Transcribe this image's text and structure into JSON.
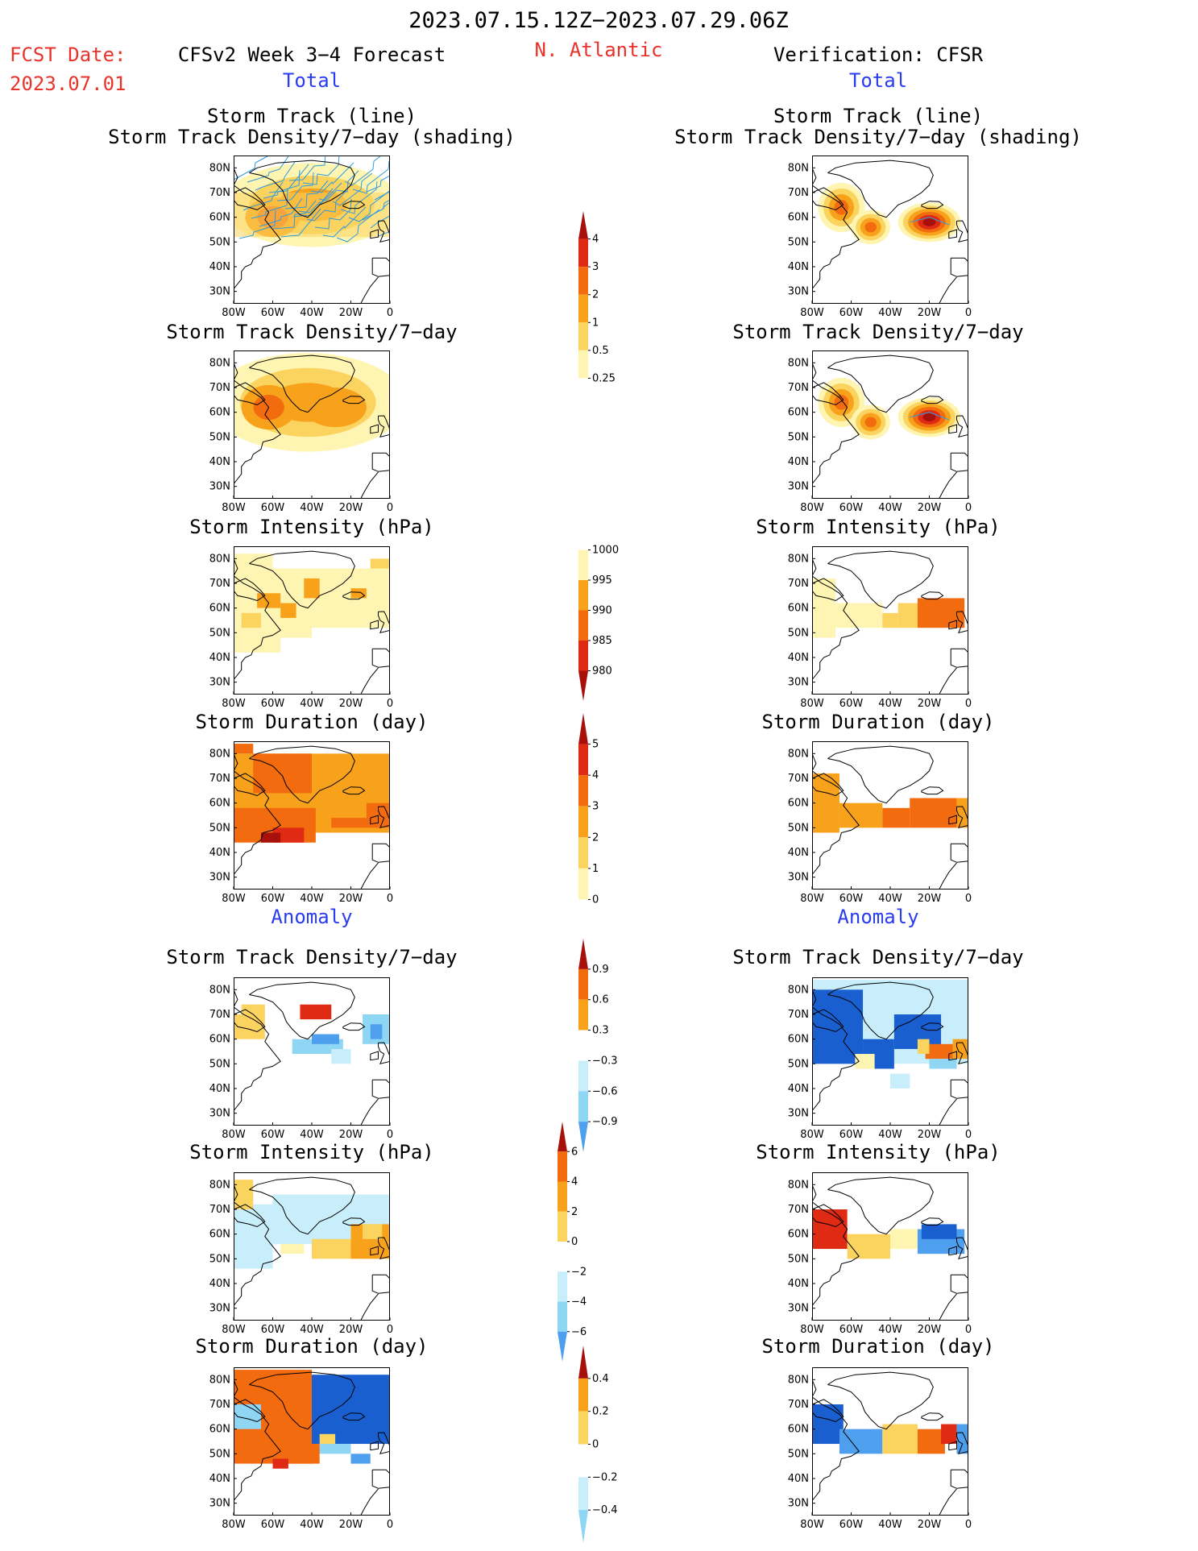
{
  "header": {
    "date_range": "2023.07.15.12Z−2023.07.29.06Z",
    "region": "N. Atlantic",
    "fcst_label": "FCST Date:",
    "fcst_date": "2023.07.01",
    "left_title": "CFSv2 Week 3−4 Forecast",
    "right_title": "Verification: CFSR",
    "total_label": "Total",
    "anomaly_label": "Anomaly"
  },
  "panels": {
    "track": [
      "Storm Track (line)",
      "Storm Track Density/7−day (shading)"
    ],
    "density": "Storm Track Density/7−day",
    "intensity": "Storm Intensity (hPa)",
    "duration": "Storm Duration (day)"
  },
  "axes": {
    "lat_ticks": [
      "80N",
      "70N",
      "60N",
      "50N",
      "40N",
      "30N"
    ],
    "lon_ticks": [
      "80W",
      "60W",
      "40W",
      "20W",
      "0"
    ]
  },
  "colorbars": {
    "density_total": [
      "4",
      "3",
      "2",
      "1",
      "0.5",
      "0.25"
    ],
    "intensity_total": [
      "1000",
      "995",
      "990",
      "985",
      "980"
    ],
    "duration_total": [
      "5",
      "4",
      "3",
      "2",
      "1",
      "0"
    ],
    "density_anom": [
      "0.9",
      "0.6",
      "0.3",
      "−0.3",
      "−0.6",
      "−0.9"
    ],
    "intensity_anom": [
      "6",
      "4",
      "2",
      "0",
      "−2",
      "−4",
      "−6"
    ],
    "duration_anom": [
      "0.4",
      "0.2",
      "0",
      "−0.2",
      "−0.4"
    ]
  },
  "colors": {
    "red_text": "#e8332b",
    "blue_text": "#2a3cf0",
    "land_outline": "#000000",
    "track_lines": "#2e9be0",
    "warm": [
      "#fff5b3",
      "#fbd35f",
      "#f8a21c",
      "#f26b0f",
      "#df2a14",
      "#a8110b"
    ],
    "cool": [
      "#c9eefb",
      "#8fd5f4",
      "#4ea0ee",
      "#1a5fd0"
    ]
  }
}
